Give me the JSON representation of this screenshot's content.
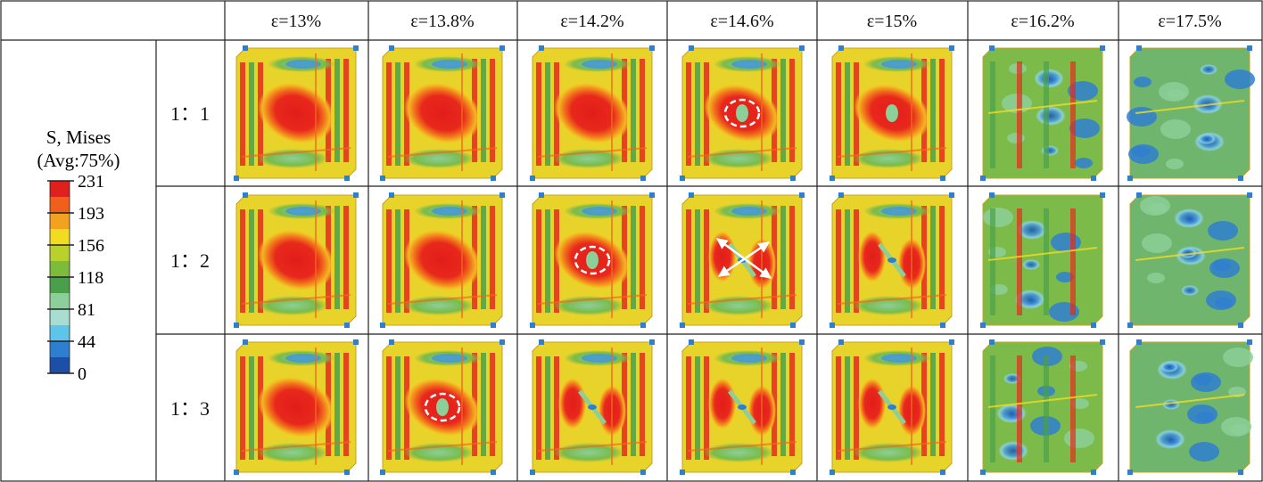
{
  "strain_headers": [
    "ε=13%",
    "ε=13.8%",
    "ε=14.2%",
    "ε=14.6%",
    "ε=15%",
    "ε=16.2%",
    "ε=17.5%"
  ],
  "ratio_labels": [
    "1：1",
    "1：2",
    "1：3"
  ],
  "legend": {
    "title_line1": "S, Mises",
    "title_line2": "(Avg:75%)",
    "ticks": [
      "231",
      "193",
      "156",
      "118",
      "81",
      "44",
      "0"
    ],
    "colors": [
      "#e0201c",
      "#f0601a",
      "#f2a21f",
      "#f2dc22",
      "#b9d12b",
      "#7dbb3b",
      "#4aa04a",
      "#8ccf98",
      "#a8ddd2",
      "#5fc4ea",
      "#2f7fd0",
      "#1d4fa8"
    ]
  },
  "cells": [
    [
      {
        "state": "intact",
        "marker": "none"
      },
      {
        "state": "intact",
        "marker": "none"
      },
      {
        "state": "intact",
        "marker": "none"
      },
      {
        "state": "onset",
        "marker": "circle"
      },
      {
        "state": "onset",
        "marker": "none"
      },
      {
        "state": "collapse",
        "marker": "none"
      },
      {
        "state": "crushed",
        "marker": "none"
      }
    ],
    [
      {
        "state": "intact",
        "marker": "none"
      },
      {
        "state": "intact",
        "marker": "none"
      },
      {
        "state": "onset",
        "marker": "circle"
      },
      {
        "state": "split",
        "marker": "arrows"
      },
      {
        "state": "split",
        "marker": "none"
      },
      {
        "state": "collapse",
        "marker": "none"
      },
      {
        "state": "crushed",
        "marker": "none"
      }
    ],
    [
      {
        "state": "intact",
        "marker": "none"
      },
      {
        "state": "onset",
        "marker": "circle"
      },
      {
        "state": "split",
        "marker": "none"
      },
      {
        "state": "split",
        "marker": "none"
      },
      {
        "state": "split",
        "marker": "none"
      },
      {
        "state": "collapse",
        "marker": "none"
      },
      {
        "state": "crushed",
        "marker": "none"
      }
    ]
  ]
}
